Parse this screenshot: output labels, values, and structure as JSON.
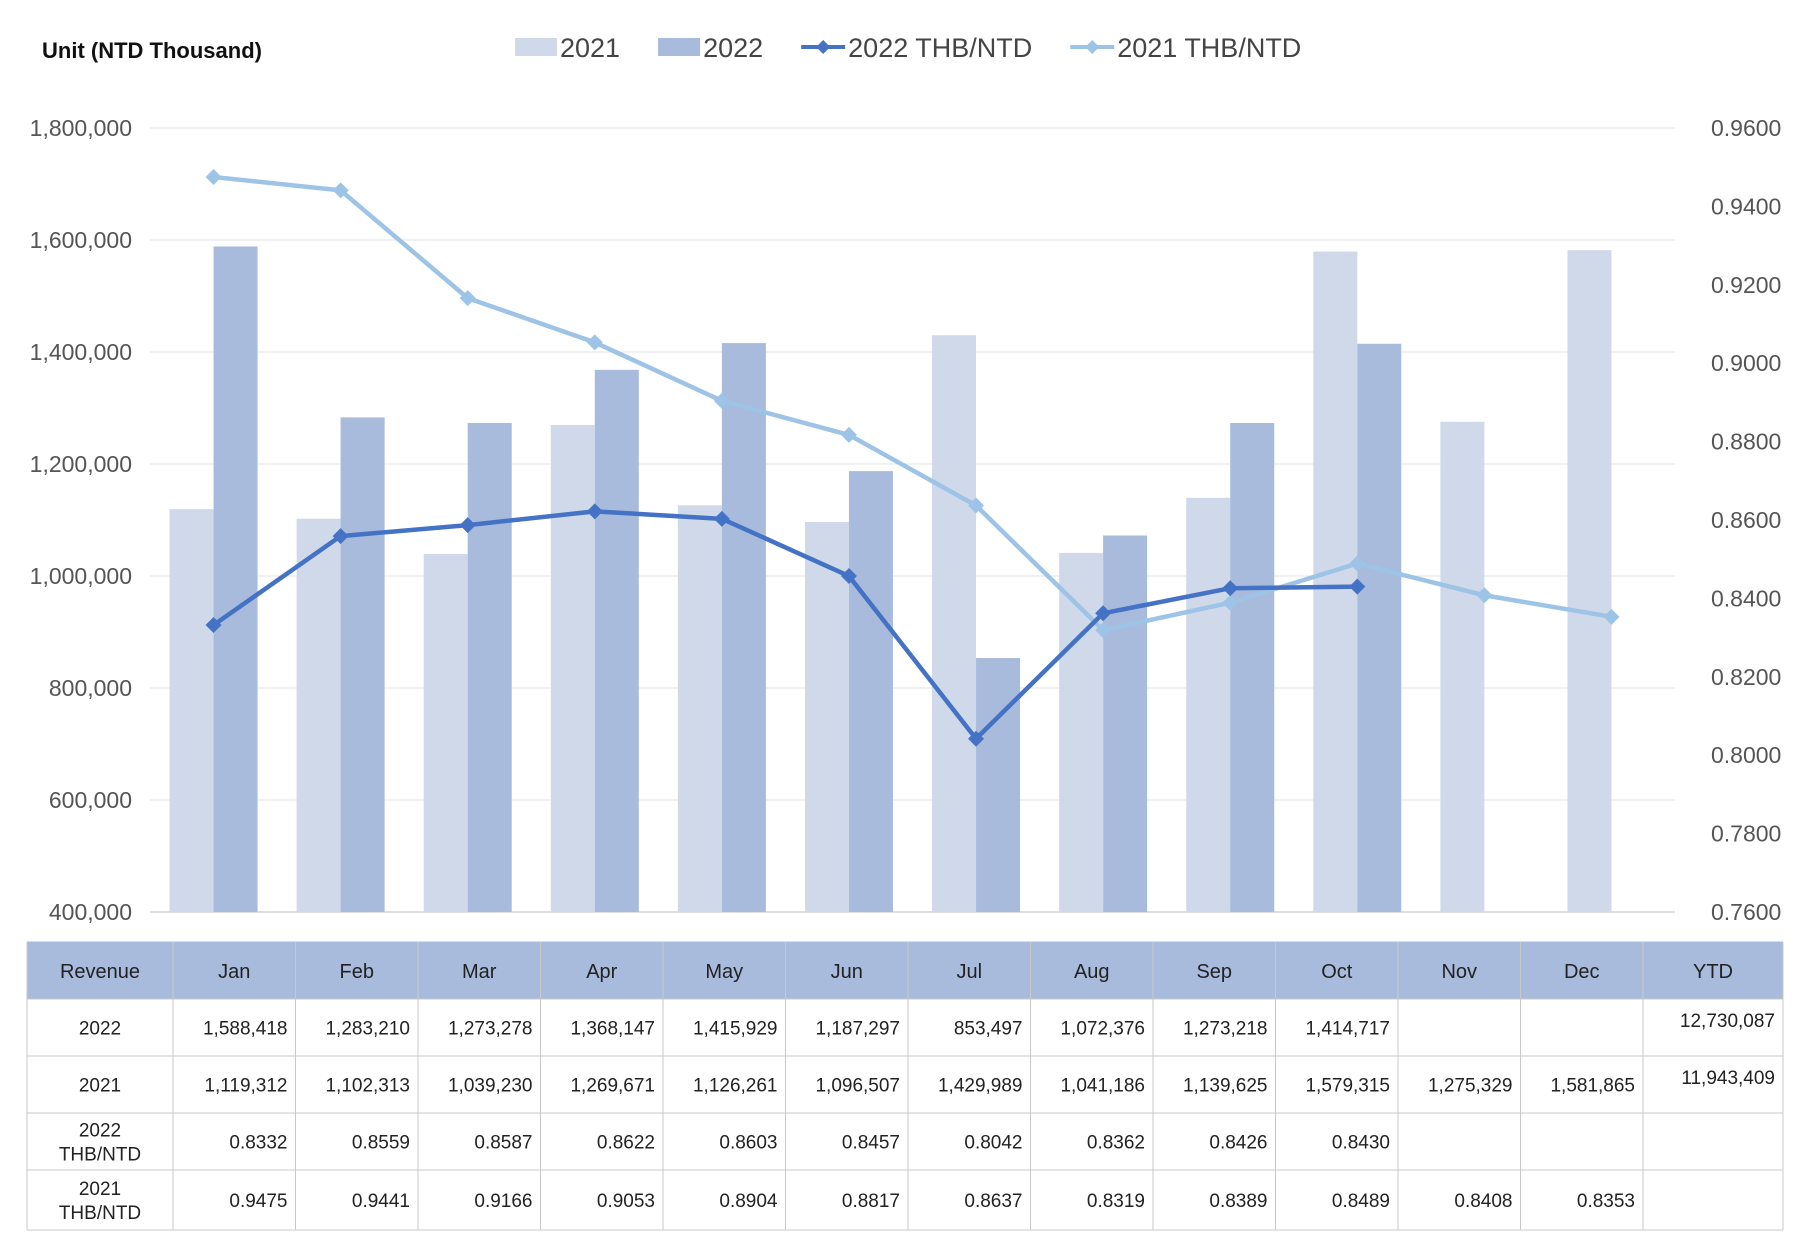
{
  "chart_data": {
    "type": "bar",
    "unit_label": "Unit (NTD Thousand)",
    "categories": [
      "Jan",
      "Feb",
      "Mar",
      "Apr",
      "May",
      "Jun",
      "Jul",
      "Aug",
      "Sep",
      "Oct",
      "Nov",
      "Dec"
    ],
    "ylim": [
      400000,
      1800000
    ],
    "yticks": [
      "400,000",
      "600,000",
      "800,000",
      "1,000,000",
      "1,200,000",
      "1,400,000",
      "1,600,000",
      "1,800,000"
    ],
    "y2lim": [
      0.76,
      0.96
    ],
    "y2ticks": [
      "0.7600",
      "0.7800",
      "0.8000",
      "0.8200",
      "0.8400",
      "0.8600",
      "0.8800",
      "0.9000",
      "0.9200",
      "0.9400",
      "0.9600"
    ],
    "legend_position": "top",
    "grid": true,
    "series": [
      {
        "name": "2021",
        "kind": "bar",
        "axis": "left",
        "color": "#cfd9ea",
        "values": [
          1119312,
          1102313,
          1039230,
          1269671,
          1126261,
          1096507,
          1429989,
          1041186,
          1139625,
          1579315,
          1275329,
          1581865
        ]
      },
      {
        "name": "2022",
        "kind": "bar",
        "axis": "left",
        "color": "#a8bbdc",
        "values": [
          1588418,
          1283210,
          1273278,
          1368147,
          1415929,
          1187297,
          853497,
          1072376,
          1273218,
          1414717,
          null,
          null
        ]
      },
      {
        "name": "2022 THB/NTD",
        "kind": "line",
        "axis": "right",
        "color": "#4472c4",
        "values": [
          0.8332,
          0.8559,
          0.8587,
          0.8622,
          0.8603,
          0.8457,
          0.8042,
          0.8362,
          0.8426,
          0.843,
          null,
          null
        ]
      },
      {
        "name": "2021 THB/NTD",
        "kind": "line",
        "axis": "right",
        "color": "#9dc3e6",
        "values": [
          0.9475,
          0.9441,
          0.9166,
          0.9053,
          0.8904,
          0.8817,
          0.8637,
          0.8319,
          0.8389,
          0.8489,
          0.8408,
          0.8353
        ]
      }
    ],
    "table": {
      "header": [
        "Revenue",
        "Jan",
        "Feb",
        "Mar",
        "Apr",
        "May",
        "Jun",
        "Jul",
        "Aug",
        "Sep",
        "Oct",
        "Nov",
        "Dec",
        "YTD"
      ],
      "rows": [
        [
          "2022",
          "1,588,418",
          "1,283,210",
          "1,273,278",
          "1,368,147",
          "1,415,929",
          "1,187,297",
          "853,497",
          "1,072,376",
          "1,273,218",
          "1,414,717",
          "",
          "",
          "12,730,087"
        ],
        [
          "2021",
          "1,119,312",
          "1,102,313",
          "1,039,230",
          "1,269,671",
          "1,126,261",
          "1,096,507",
          "1,429,989",
          "1,041,186",
          "1,139,625",
          "1,579,315",
          "1,275,329",
          "1,581,865",
          "11,943,409"
        ],
        [
          "2022\nTHB/NTD",
          "0.8332",
          "0.8559",
          "0.8587",
          "0.8622",
          "0.8603",
          "0.8457",
          "0.8042",
          "0.8362",
          "0.8426",
          "0.8430",
          "",
          "",
          ""
        ],
        [
          "2021\nTHB/NTD",
          "0.9475",
          "0.9441",
          "0.9166",
          "0.9053",
          "0.8904",
          "0.8817",
          "0.8637",
          "0.8319",
          "0.8389",
          "0.8489",
          "0.8408",
          "0.8353",
          ""
        ]
      ],
      "header_bg": "#a8bbdc"
    }
  }
}
